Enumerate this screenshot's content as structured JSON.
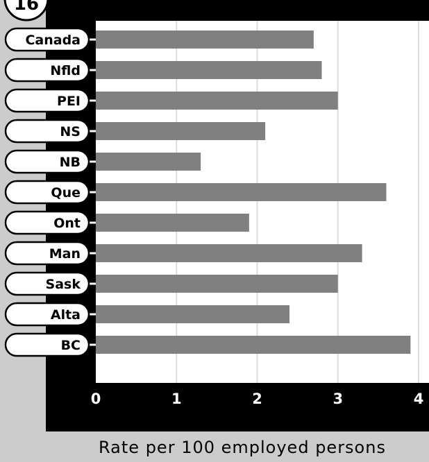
{
  "figure_badge": "16",
  "colors": {
    "bar": "#808080",
    "frame": "#000000",
    "left_panel": "#cccccc",
    "plot_bg": "#ffffff",
    "grid": "#dddddd"
  },
  "chart_data": {
    "type": "bar",
    "orientation": "horizontal",
    "categories": [
      "Canada",
      "Nfld",
      "PEI",
      "NS",
      "NB",
      "Que",
      "Ont",
      "Man",
      "Sask",
      "Alta",
      "BC"
    ],
    "values": [
      2.7,
      2.8,
      3.0,
      2.1,
      1.3,
      3.6,
      1.9,
      3.3,
      3.0,
      2.4,
      3.9
    ],
    "xlim": [
      0,
      4
    ],
    "xticks": [
      "0",
      "1",
      "2",
      "3",
      "4"
    ],
    "xlabel": "Rate per 100 employed persons",
    "grid": true
  }
}
